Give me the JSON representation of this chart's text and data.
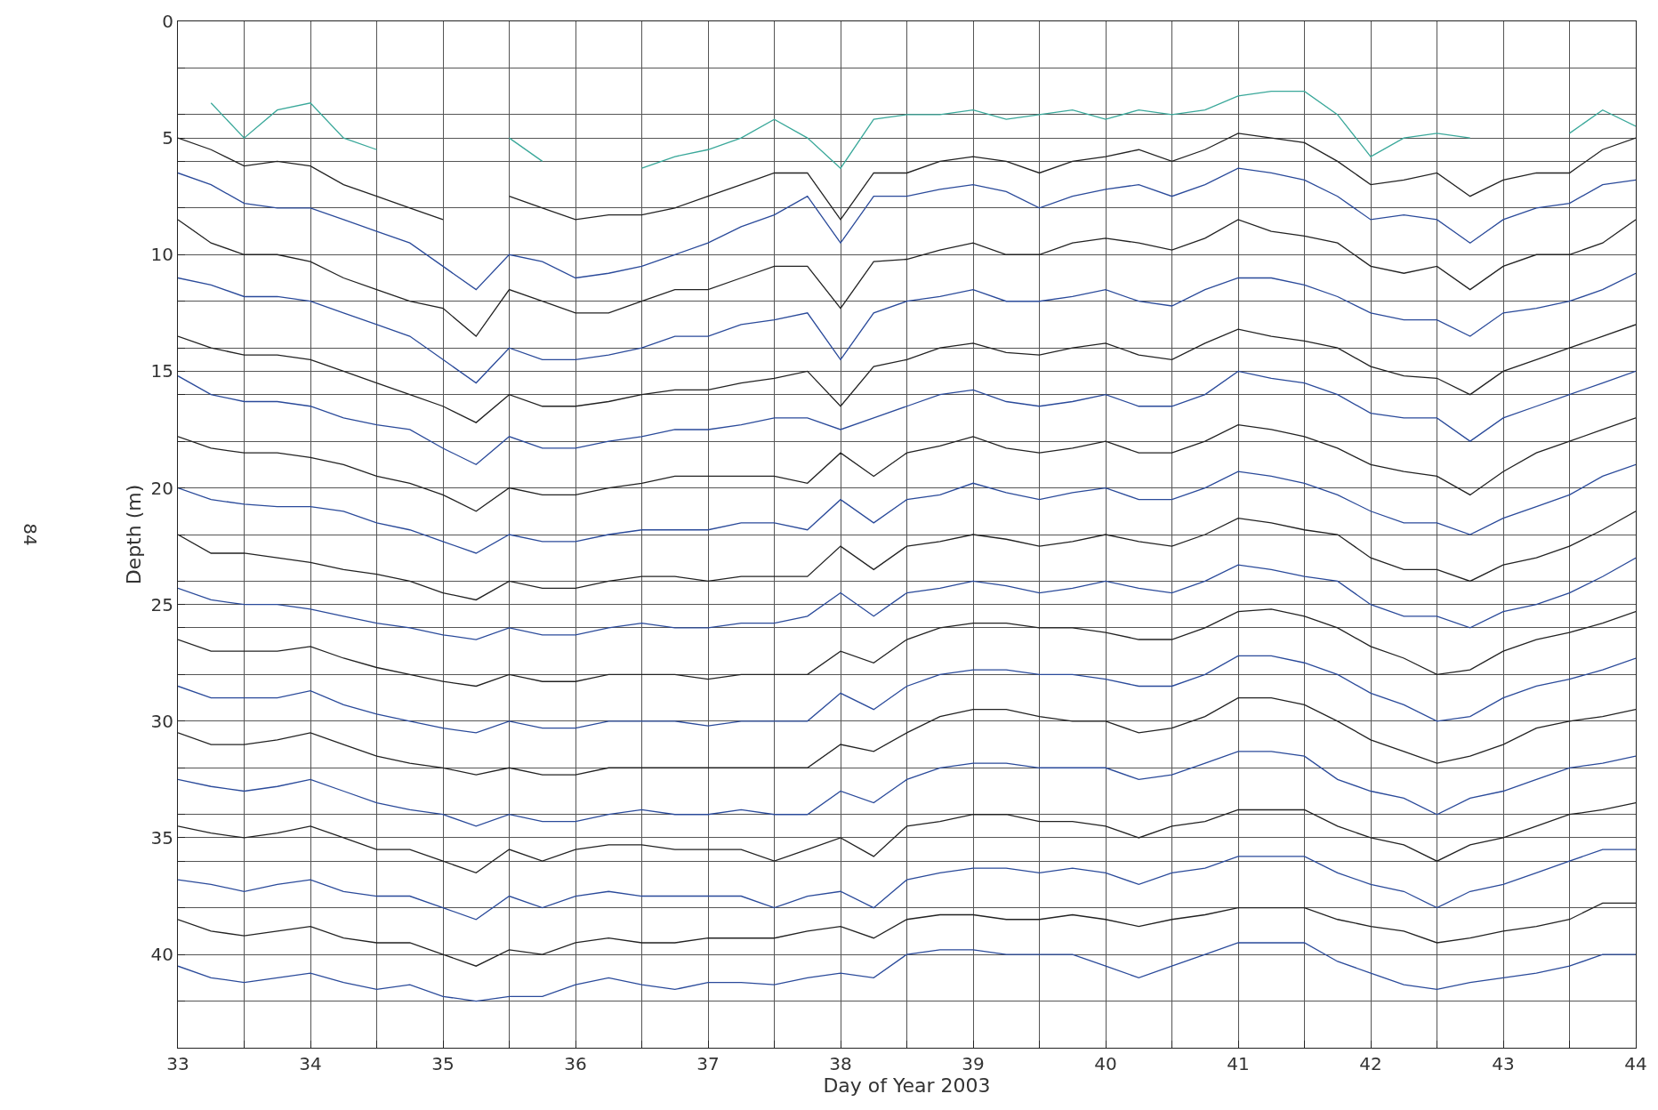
{
  "chart_data": {
    "type": "line",
    "xlabel": "Day of Year 2003",
    "ylabel": "Depth (m)",
    "annotations": [
      "84"
    ],
    "x": [
      33,
      33.25,
      33.5,
      33.75,
      34,
      34.25,
      34.5,
      34.75,
      35,
      35.25,
      35.5,
      35.75,
      36,
      36.25,
      36.5,
      36.75,
      37,
      37.25,
      37.5,
      37.75,
      38,
      38.25,
      38.5,
      38.75,
      39,
      39.25,
      39.5,
      39.75,
      40,
      40.25,
      40.5,
      40.75,
      41,
      41.25,
      41.5,
      41.75,
      42,
      42.25,
      42.5,
      42.75,
      43,
      43.25,
      43.5,
      43.75,
      44
    ],
    "xlim": [
      33,
      44
    ],
    "ylim": [
      44,
      0
    ],
    "xticks": [
      33,
      {
        "value": 33.5,
        "label": null
      },
      34,
      {
        "value": 34.5,
        "label": null
      },
      35,
      {
        "value": 35.5,
        "label": null
      },
      36,
      {
        "value": 36.5,
        "label": null
      },
      37,
      {
        "value": 37.5,
        "label": null
      },
      38,
      {
        "value": 38.5,
        "label": null
      },
      39,
      {
        "value": 39.5,
        "label": null
      },
      40,
      {
        "value": 40.5,
        "label": null
      },
      41,
      {
        "value": 41.5,
        "label": null
      },
      42,
      {
        "value": 42.5,
        "label": null
      },
      43,
      {
        "value": 43.5,
        "label": null
      },
      44
    ],
    "yticks": [
      0,
      {
        "value": 2,
        "label": null
      },
      {
        "value": 4,
        "label": null
      },
      5,
      {
        "value": 6,
        "label": null
      },
      {
        "value": 8,
        "label": null
      },
      10,
      {
        "value": 12,
        "label": null
      },
      {
        "value": 14,
        "label": null
      },
      15,
      {
        "value": 16,
        "label": null
      },
      {
        "value": 18,
        "label": null
      },
      20,
      {
        "value": 22,
        "label": null
      },
      {
        "value": 24,
        "label": null
      },
      25,
      {
        "value": 26,
        "label": null
      },
      {
        "value": 28,
        "label": null
      },
      30,
      {
        "value": 32,
        "label": null
      },
      {
        "value": 34,
        "label": null
      },
      35,
      {
        "value": 36,
        "label": null
      },
      {
        "value": 38,
        "label": null
      },
      40,
      {
        "value": 42,
        "label": null
      }
    ],
    "grid": true,
    "marker": "none",
    "line_style": "solid",
    "series": [
      {
        "color": "#3aa89a",
        "values": [
          null,
          3.5,
          5,
          3.8,
          3.5,
          5,
          5.5,
          null,
          null,
          null,
          5,
          6,
          null,
          null,
          6.3,
          5.8,
          5.5,
          5,
          4.2,
          5,
          6.3,
          4.2,
          4,
          4,
          3.8,
          4.2,
          4,
          3.8,
          4.2,
          3.8,
          4,
          3.8,
          3.2,
          3,
          3,
          4,
          5.8,
          5,
          4.8,
          5,
          null,
          null,
          4.8,
          3.8,
          4.5
        ]
      },
      {
        "color": "#222222",
        "values": [
          5,
          5.5,
          6.2,
          6,
          6.2,
          7,
          7.5,
          8,
          8.5,
          null,
          7.5,
          8,
          8.5,
          8.3,
          8.3,
          8,
          7.5,
          7,
          6.5,
          6.5,
          8.5,
          6.5,
          6.5,
          6,
          5.8,
          6,
          6.5,
          6,
          5.8,
          5.5,
          6,
          5.5,
          4.8,
          5,
          5.2,
          6,
          7,
          6.8,
          6.5,
          7.5,
          6.8,
          6.5,
          6.5,
          5.5,
          5
        ]
      },
      {
        "color": "#2a4a9a",
        "values": [
          6.5,
          7,
          7.8,
          8,
          8,
          8.5,
          9,
          9.5,
          10.5,
          11.5,
          10,
          10.3,
          11,
          10.8,
          10.5,
          10,
          9.5,
          8.8,
          8.3,
          7.5,
          9.5,
          7.5,
          7.5,
          7.2,
          7,
          7.3,
          8,
          7.5,
          7.2,
          7,
          7.5,
          7,
          6.3,
          6.5,
          6.8,
          7.5,
          8.5,
          8.3,
          8.5,
          9.5,
          8.5,
          8,
          7.8,
          7,
          6.8
        ]
      },
      {
        "color": "#222222",
        "values": [
          8.5,
          9.5,
          10,
          10,
          10.3,
          11,
          11.5,
          12,
          12.3,
          13.5,
          11.5,
          12,
          12.5,
          12.5,
          12,
          11.5,
          11.5,
          11,
          10.5,
          10.5,
          12.3,
          10.3,
          10.2,
          9.8,
          9.5,
          10,
          10,
          9.5,
          9.3,
          9.5,
          9.8,
          9.3,
          8.5,
          9,
          9.2,
          9.5,
          10.5,
          10.8,
          10.5,
          11.5,
          10.5,
          10,
          10,
          9.5,
          8.5
        ]
      },
      {
        "color": "#2a4a9a",
        "values": [
          11,
          11.3,
          11.8,
          11.8,
          12,
          12.5,
          13,
          13.5,
          14.5,
          15.5,
          14,
          14.5,
          14.5,
          14.3,
          14,
          13.5,
          13.5,
          13,
          12.8,
          12.5,
          14.5,
          12.5,
          12,
          11.8,
          11.5,
          12,
          12,
          11.8,
          11.5,
          12,
          12.2,
          11.5,
          11,
          11,
          11.3,
          11.8,
          12.5,
          12.8,
          12.8,
          13.5,
          12.5,
          12.3,
          12,
          11.5,
          10.8
        ]
      },
      {
        "color": "#222222",
        "values": [
          13.5,
          14,
          14.3,
          14.3,
          14.5,
          15,
          15.5,
          16,
          16.5,
          17.2,
          16,
          16.5,
          16.5,
          16.3,
          16,
          15.8,
          15.8,
          15.5,
          15.3,
          15,
          16.5,
          14.8,
          14.5,
          14,
          13.8,
          14.2,
          14.3,
          14,
          13.8,
          14.3,
          14.5,
          13.8,
          13.2,
          13.5,
          13.7,
          14,
          14.8,
          15.2,
          15.3,
          16,
          15,
          14.5,
          14,
          13.5,
          13
        ]
      },
      {
        "color": "#2a4a9a",
        "values": [
          15.2,
          16,
          16.3,
          16.3,
          16.5,
          17,
          17.3,
          17.5,
          18.3,
          19,
          17.8,
          18.3,
          18.3,
          18,
          17.8,
          17.5,
          17.5,
          17.3,
          17,
          17,
          17.5,
          17,
          16.5,
          16,
          15.8,
          16.3,
          16.5,
          16.3,
          16,
          16.5,
          16.5,
          16,
          15,
          15.3,
          15.5,
          16,
          16.8,
          17,
          17,
          18,
          17,
          16.5,
          16,
          15.5,
          15
        ]
      },
      {
        "color": "#222222",
        "values": [
          17.8,
          18.3,
          18.5,
          18.5,
          18.7,
          19,
          19.5,
          19.8,
          20.3,
          21,
          20,
          20.3,
          20.3,
          20,
          19.8,
          19.5,
          19.5,
          19.5,
          19.5,
          19.8,
          18.5,
          19.5,
          18.5,
          18.2,
          17.8,
          18.3,
          18.5,
          18.3,
          18,
          18.5,
          18.5,
          18,
          17.3,
          17.5,
          17.8,
          18.3,
          19,
          19.3,
          19.5,
          20.3,
          19.3,
          18.5,
          18,
          17.5,
          17
        ]
      },
      {
        "color": "#2a4a9a",
        "values": [
          20,
          20.5,
          20.7,
          20.8,
          20.8,
          21,
          21.5,
          21.8,
          22.3,
          22.8,
          22,
          22.3,
          22.3,
          22,
          21.8,
          21.8,
          21.8,
          21.5,
          21.5,
          21.8,
          20.5,
          21.5,
          20.5,
          20.3,
          19.8,
          20.2,
          20.5,
          20.2,
          20,
          20.5,
          20.5,
          20,
          19.3,
          19.5,
          19.8,
          20.3,
          21,
          21.5,
          21.5,
          22,
          21.3,
          20.8,
          20.3,
          19.5,
          19
        ]
      },
      {
        "color": "#222222",
        "values": [
          22,
          22.8,
          22.8,
          23,
          23.2,
          23.5,
          23.7,
          24,
          24.5,
          24.8,
          24,
          24.3,
          24.3,
          24,
          23.8,
          23.8,
          24,
          23.8,
          23.8,
          23.8,
          22.5,
          23.5,
          22.5,
          22.3,
          22,
          22.2,
          22.5,
          22.3,
          22,
          22.3,
          22.5,
          22,
          21.3,
          21.5,
          21.8,
          22,
          23,
          23.5,
          23.5,
          24,
          23.3,
          23,
          22.5,
          21.8,
          21
        ]
      },
      {
        "color": "#2a4a9a",
        "values": [
          24.3,
          24.8,
          25,
          25,
          25.2,
          25.5,
          25.8,
          26,
          26.3,
          26.5,
          26,
          26.3,
          26.3,
          26,
          25.8,
          26,
          26,
          25.8,
          25.8,
          25.5,
          24.5,
          25.5,
          24.5,
          24.3,
          24,
          24.2,
          24.5,
          24.3,
          24,
          24.3,
          24.5,
          24,
          23.3,
          23.5,
          23.8,
          24,
          25,
          25.5,
          25.5,
          26,
          25.3,
          25,
          24.5,
          23.8,
          23
        ]
      },
      {
        "color": "#222222",
        "values": [
          26.5,
          27,
          27,
          27,
          26.8,
          27.3,
          27.7,
          28,
          28.3,
          28.5,
          28,
          28.3,
          28.3,
          28,
          28,
          28,
          28.2,
          28,
          28,
          28,
          27,
          27.5,
          26.5,
          26,
          25.8,
          25.8,
          26,
          26,
          26.2,
          26.5,
          26.5,
          26,
          25.3,
          25.2,
          25.5,
          26,
          26.8,
          27.3,
          28,
          27.8,
          27,
          26.5,
          26.2,
          25.8,
          25.3
        ]
      },
      {
        "color": "#2a4a9a",
        "values": [
          28.5,
          29,
          29,
          29,
          28.7,
          29.3,
          29.7,
          30,
          30.3,
          30.5,
          30,
          30.3,
          30.3,
          30,
          30,
          30,
          30.2,
          30,
          30,
          30,
          28.8,
          29.5,
          28.5,
          28,
          27.8,
          27.8,
          28,
          28,
          28.2,
          28.5,
          28.5,
          28,
          27.2,
          27.2,
          27.5,
          28,
          28.8,
          29.3,
          30,
          29.8,
          29,
          28.5,
          28.2,
          27.8,
          27.3
        ]
      },
      {
        "color": "#222222",
        "values": [
          30.5,
          31,
          31,
          30.8,
          30.5,
          31,
          31.5,
          31.8,
          32,
          32.3,
          32,
          32.3,
          32.3,
          32,
          32,
          32,
          32,
          32,
          32,
          32,
          31,
          31.3,
          30.5,
          29.8,
          29.5,
          29.5,
          29.8,
          30,
          30,
          30.5,
          30.3,
          29.8,
          29,
          29,
          29.3,
          30,
          30.8,
          31.3,
          31.8,
          31.5,
          31,
          30.3,
          30,
          29.8,
          29.5
        ]
      },
      {
        "color": "#2a4a9a",
        "values": [
          32.5,
          32.8,
          33,
          32.8,
          32.5,
          33,
          33.5,
          33.8,
          34,
          34.5,
          34,
          34.3,
          34.3,
          34,
          33.8,
          34,
          34,
          33.8,
          34,
          34,
          33,
          33.5,
          32.5,
          32,
          31.8,
          31.8,
          32,
          32,
          32,
          32.5,
          32.3,
          31.8,
          31.3,
          31.3,
          31.5,
          32.5,
          33,
          33.3,
          34,
          33.3,
          33,
          32.5,
          32,
          31.8,
          31.5
        ]
      },
      {
        "color": "#222222",
        "values": [
          34.5,
          34.8,
          35,
          34.8,
          34.5,
          35,
          35.5,
          35.5,
          36,
          36.5,
          35.5,
          36,
          35.5,
          35.3,
          35.3,
          35.5,
          35.5,
          35.5,
          36,
          35.5,
          35,
          35.8,
          34.5,
          34.3,
          34,
          34,
          34.3,
          34.3,
          34.5,
          35,
          34.5,
          34.3,
          33.8,
          33.8,
          33.8,
          34.5,
          35,
          35.3,
          36,
          35.3,
          35,
          34.5,
          34,
          33.8,
          33.5
        ]
      },
      {
        "color": "#2a4a9a",
        "values": [
          36.8,
          37,
          37.3,
          37,
          36.8,
          37.3,
          37.5,
          37.5,
          38,
          38.5,
          37.5,
          38,
          37.5,
          37.3,
          37.5,
          37.5,
          37.5,
          37.5,
          38,
          37.5,
          37.3,
          38,
          36.8,
          36.5,
          36.3,
          36.3,
          36.5,
          36.3,
          36.5,
          37,
          36.5,
          36.3,
          35.8,
          35.8,
          35.8,
          36.5,
          37,
          37.3,
          38,
          37.3,
          37,
          36.5,
          36,
          35.5,
          35.5
        ]
      },
      {
        "color": "#222222",
        "values": [
          38.5,
          39,
          39.2,
          39,
          38.8,
          39.3,
          39.5,
          39.5,
          40,
          40.5,
          39.8,
          40,
          39.5,
          39.3,
          39.5,
          39.5,
          39.3,
          39.3,
          39.3,
          39,
          38.8,
          39.3,
          38.5,
          38.3,
          38.3,
          38.5,
          38.5,
          38.3,
          38.5,
          38.8,
          38.5,
          38.3,
          38,
          38,
          38,
          38.5,
          38.8,
          39,
          39.5,
          39.3,
          39,
          38.8,
          38.5,
          37.8,
          37.8
        ]
      },
      {
        "color": "#2a4a9a",
        "values": [
          40.5,
          41,
          41.2,
          41,
          40.8,
          41.2,
          41.5,
          41.3,
          41.8,
          42,
          41.8,
          41.8,
          41.3,
          41,
          41.3,
          41.5,
          41.2,
          41.2,
          41.3,
          41,
          40.8,
          41,
          40,
          39.8,
          39.8,
          40,
          40,
          40,
          40.5,
          41,
          40.5,
          40,
          39.5,
          39.5,
          39.5,
          40.3,
          40.8,
          41.3,
          41.5,
          41.2,
          41,
          40.8,
          40.5,
          40,
          40
        ]
      }
    ]
  }
}
